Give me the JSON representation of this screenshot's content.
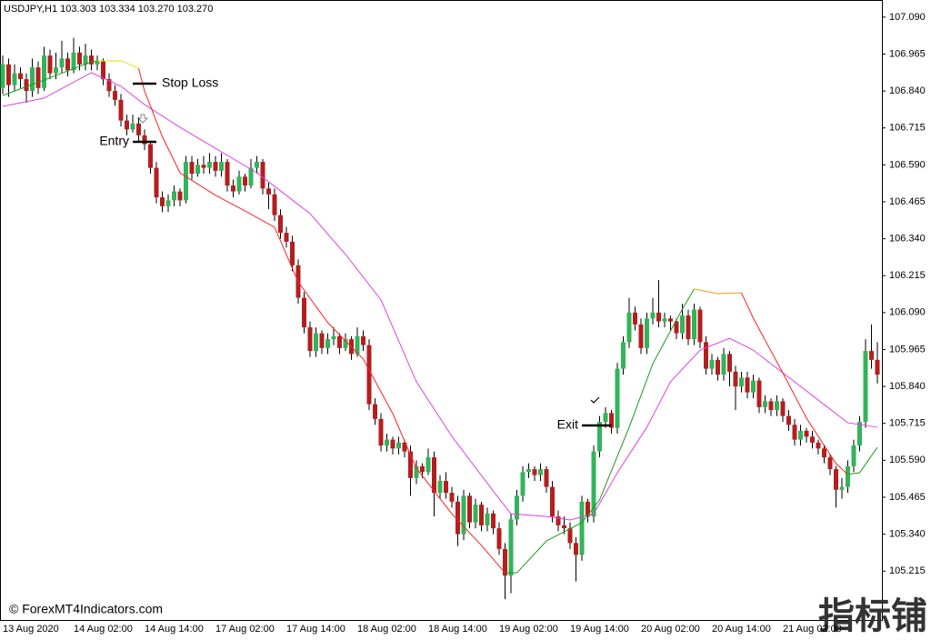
{
  "chart_data": {
    "type": "candlestick",
    "title": "USDJPY,H1  103.303 103.334 103.270 103.270",
    "copyright": "© ForexMT4Indicators.com",
    "watermark": "指标铺",
    "up_color": "#32b45a",
    "down_color": "#b41e1e",
    "wick_color": "#000000",
    "ylim": [
      105.0495,
      107.148
    ],
    "yticks": [
      {
        "value": 107.09,
        "label": "107.090"
      },
      106.965,
      {
        "value": 106.84,
        "label": "106.840"
      },
      106.715,
      {
        "value": 106.59,
        "label": "106.590"
      },
      106.465,
      {
        "value": 106.34,
        "label": "106.340"
      },
      106.215,
      {
        "value": 106.09,
        "label": "106.090"
      },
      105.965,
      {
        "value": 105.84,
        "label": "105.840"
      },
      105.715,
      {
        "value": 105.59,
        "label": "105.590"
      },
      105.465,
      {
        "value": 105.34,
        "label": "105.340"
      },
      105.215
    ],
    "categories": [
      "13 Aug 2020",
      null,
      null,
      null,
      null,
      null,
      null,
      null,
      null,
      null,
      null,
      null,
      "14 Aug 02:00",
      null,
      null,
      null,
      null,
      null,
      null,
      null,
      null,
      null,
      null,
      null,
      "14 Aug 14:00",
      null,
      null,
      null,
      null,
      null,
      null,
      null,
      null,
      null,
      null,
      null,
      "17 Aug 02:00",
      null,
      null,
      null,
      null,
      null,
      null,
      null,
      null,
      null,
      null,
      null,
      "17 Aug 14:00",
      null,
      null,
      null,
      null,
      null,
      null,
      null,
      null,
      null,
      null,
      null,
      "18 Aug 02:00",
      null,
      null,
      null,
      null,
      null,
      null,
      null,
      null,
      null,
      null,
      null,
      "18 Aug 14:00",
      null,
      null,
      null,
      null,
      null,
      null,
      null,
      null,
      null,
      null,
      null,
      "19 Aug 02:00",
      null,
      null,
      null,
      null,
      null,
      null,
      null,
      null,
      null,
      null,
      null,
      "19 Aug 14:00",
      null,
      null,
      null,
      null,
      null,
      null,
      null,
      null,
      null,
      null,
      null,
      "20 Aug 02:00",
      null,
      null,
      null,
      null,
      null,
      null,
      null,
      null,
      null,
      null,
      null,
      "20 Aug 14:00",
      null,
      null,
      null,
      null,
      null,
      null,
      null,
      null,
      null,
      null,
      null,
      "21 Aug 02:00",
      null,
      null,
      null,
      null,
      null,
      null,
      null,
      null,
      null,
      null,
      null,
      null,
      null,
      null,
      null,
      null
    ],
    "ohlc": [
      [
        106.85,
        106.96,
        106.83,
        106.93
      ],
      [
        106.93,
        106.95,
        106.82,
        106.86
      ],
      [
        106.86,
        106.93,
        106.84,
        106.9
      ],
      [
        106.9,
        106.92,
        106.85,
        106.88
      ],
      [
        106.88,
        106.9,
        106.8,
        106.84
      ],
      [
        106.84,
        106.95,
        106.82,
        106.92
      ],
      [
        106.92,
        106.94,
        106.83,
        106.85
      ],
      [
        106.85,
        106.99,
        106.84,
        106.96
      ],
      [
        106.96,
        106.98,
        106.88,
        106.9
      ],
      [
        106.9,
        106.97,
        106.88,
        106.92
      ],
      [
        106.92,
        107.01,
        106.9,
        106.95
      ],
      [
        106.95,
        106.97,
        106.89,
        106.91
      ],
      [
        106.91,
        107.02,
        106.9,
        106.97
      ],
      [
        106.97,
        106.99,
        106.91,
        106.93
      ],
      [
        106.93,
        107.0,
        106.91,
        106.96
      ],
      [
        106.96,
        106.98,
        106.91,
        106.93
      ],
      [
        106.93,
        106.96,
        106.91,
        106.94
      ],
      [
        106.94,
        106.95,
        106.86,
        106.88
      ],
      [
        106.88,
        106.9,
        106.82,
        106.84
      ],
      [
        106.84,
        106.86,
        106.79,
        106.81
      ],
      [
        106.81,
        106.83,
        106.72,
        106.74
      ],
      [
        106.74,
        106.76,
        106.69,
        106.71
      ],
      [
        106.71,
        106.76,
        106.7,
        106.73
      ],
      [
        106.73,
        106.75,
        106.67,
        106.69
      ],
      [
        106.69,
        106.71,
        106.64,
        106.66
      ],
      [
        106.66,
        106.67,
        106.56,
        106.58
      ],
      [
        106.58,
        106.6,
        106.46,
        106.48
      ],
      [
        106.48,
        106.5,
        106.43,
        106.45
      ],
      [
        106.45,
        106.49,
        106.43,
        106.47
      ],
      [
        106.47,
        106.52,
        106.45,
        106.5
      ],
      [
        106.5,
        106.51,
        106.45,
        106.47
      ],
      [
        106.47,
        106.62,
        106.46,
        106.6
      ],
      [
        106.6,
        106.62,
        106.54,
        106.56
      ],
      [
        106.56,
        106.61,
        106.55,
        106.59
      ],
      [
        106.59,
        106.62,
        106.56,
        106.58
      ],
      [
        106.58,
        106.63,
        106.56,
        106.6
      ],
      [
        106.6,
        106.62,
        106.55,
        106.57
      ],
      [
        106.57,
        106.63,
        106.55,
        106.6
      ],
      [
        106.6,
        106.61,
        106.5,
        106.52
      ],
      [
        106.52,
        106.54,
        106.48,
        106.5
      ],
      [
        106.5,
        106.57,
        106.49,
        106.55
      ],
      [
        106.55,
        106.56,
        106.5,
        106.52
      ],
      [
        106.52,
        106.61,
        106.51,
        106.58
      ],
      [
        106.58,
        106.62,
        106.56,
        106.6
      ],
      [
        106.6,
        106.61,
        106.49,
        106.51
      ],
      [
        106.51,
        106.53,
        106.44,
        106.49
      ],
      [
        106.49,
        106.51,
        106.4,
        106.42
      ],
      [
        106.42,
        106.44,
        106.34,
        106.36
      ],
      [
        106.36,
        106.38,
        106.31,
        106.33
      ],
      [
        106.33,
        106.35,
        106.23,
        106.25
      ],
      [
        106.25,
        106.27,
        106.12,
        106.14
      ],
      [
        106.14,
        106.16,
        106.02,
        106.04
      ],
      [
        106.04,
        106.06,
        105.94,
        105.96
      ],
      [
        105.96,
        106.04,
        105.94,
        106.02
      ],
      [
        106.02,
        106.03,
        105.95,
        105.97
      ],
      [
        105.97,
        106.02,
        105.95,
        106.0
      ],
      [
        106.0,
        106.04,
        105.98,
        106.01
      ],
      [
        106.01,
        106.02,
        105.95,
        105.97
      ],
      [
        105.97,
        106.02,
        105.96,
        106.0
      ],
      [
        106.0,
        106.01,
        105.93,
        105.95
      ],
      [
        105.95,
        106.04,
        105.94,
        106.01
      ],
      [
        106.01,
        106.03,
        105.96,
        105.98
      ],
      [
        105.98,
        106.0,
        105.76,
        105.78
      ],
      [
        105.78,
        105.8,
        105.71,
        105.73
      ],
      [
        105.73,
        105.75,
        105.62,
        105.64
      ],
      [
        105.64,
        105.68,
        105.62,
        105.66
      ],
      [
        105.66,
        105.67,
        105.61,
        105.63
      ],
      [
        105.63,
        105.67,
        105.61,
        105.65
      ],
      [
        105.65,
        105.66,
        105.6,
        105.62
      ],
      [
        105.62,
        105.64,
        105.47,
        105.53
      ],
      [
        105.53,
        105.59,
        105.51,
        105.57
      ],
      [
        105.57,
        105.58,
        105.53,
        105.55
      ],
      [
        105.55,
        105.63,
        105.54,
        105.6
      ],
      [
        105.6,
        105.62,
        105.4,
        105.48
      ],
      [
        105.48,
        105.54,
        105.46,
        105.52
      ],
      [
        105.52,
        105.55,
        105.46,
        105.48
      ],
      [
        105.48,
        105.5,
        105.43,
        105.45
      ],
      [
        105.45,
        105.47,
        105.3,
        105.34
      ],
      [
        105.34,
        105.49,
        105.32,
        105.47
      ],
      [
        105.47,
        105.48,
        105.36,
        105.38
      ],
      [
        105.38,
        105.46,
        105.36,
        105.44
      ],
      [
        105.44,
        105.45,
        105.35,
        105.37
      ],
      [
        105.37,
        105.43,
        105.35,
        105.41
      ],
      [
        105.41,
        105.42,
        105.34,
        105.36
      ],
      [
        105.36,
        105.38,
        105.27,
        105.29
      ],
      [
        105.29,
        105.31,
        105.12,
        105.2
      ],
      [
        105.2,
        105.41,
        105.14,
        105.39
      ],
      [
        105.39,
        105.49,
        105.37,
        105.47
      ],
      [
        105.47,
        105.57,
        105.45,
        105.55
      ],
      [
        105.55,
        105.58,
        105.53,
        105.56
      ],
      [
        105.56,
        105.57,
        105.52,
        105.54
      ],
      [
        105.54,
        105.58,
        105.52,
        105.56
      ],
      [
        105.56,
        105.57,
        105.48,
        105.5
      ],
      [
        105.5,
        105.52,
        105.38,
        105.4
      ],
      [
        105.4,
        105.42,
        105.35,
        105.37
      ],
      [
        105.37,
        105.4,
        105.34,
        105.36
      ],
      [
        105.36,
        105.38,
        105.29,
        105.31
      ],
      [
        105.31,
        105.33,
        105.18,
        105.27
      ],
      [
        105.27,
        105.47,
        105.25,
        105.45
      ],
      [
        105.45,
        105.46,
        105.38,
        105.4
      ],
      [
        105.4,
        105.64,
        105.38,
        105.62
      ],
      [
        105.62,
        105.74,
        105.6,
        105.72
      ],
      [
        105.72,
        105.77,
        105.7,
        105.75
      ],
      [
        105.75,
        105.76,
        105.68,
        105.7
      ],
      [
        105.7,
        105.92,
        105.68,
        105.9
      ],
      [
        105.9,
        106.01,
        105.88,
        105.99
      ],
      [
        105.99,
        106.14,
        105.97,
        106.09
      ],
      [
        106.09,
        106.11,
        106.03,
        106.05
      ],
      [
        106.05,
        106.07,
        105.95,
        105.97
      ],
      [
        105.97,
        106.09,
        105.95,
        106.07
      ],
      [
        106.07,
        106.14,
        106.05,
        106.09
      ],
      [
        106.09,
        106.2,
        106.04,
        106.06
      ],
      [
        106.06,
        106.09,
        106.04,
        106.07
      ],
      [
        106.07,
        106.08,
        106.03,
        106.06
      ],
      [
        106.06,
        106.07,
        106.0,
        106.02
      ],
      [
        106.02,
        106.12,
        106.0,
        106.08
      ],
      [
        106.08,
        106.1,
        105.98,
        106.0
      ],
      [
        106.0,
        106.12,
        105.98,
        106.1
      ],
      [
        106.1,
        106.11,
        105.97,
        105.99
      ],
      [
        105.99,
        106.01,
        105.88,
        105.9
      ],
      [
        105.9,
        105.95,
        105.88,
        105.93
      ],
      [
        105.93,
        105.94,
        105.86,
        105.88
      ],
      [
        105.88,
        105.97,
        105.86,
        105.95
      ],
      [
        105.95,
        105.96,
        105.84,
        105.89
      ],
      [
        105.89,
        105.91,
        105.76,
        105.84
      ],
      [
        105.84,
        105.89,
        105.82,
        105.87
      ],
      [
        105.87,
        105.89,
        105.8,
        105.82
      ],
      [
        105.82,
        105.88,
        105.8,
        105.86
      ],
      [
        105.86,
        105.87,
        105.75,
        105.77
      ],
      [
        105.77,
        105.81,
        105.75,
        105.79
      ],
      [
        105.79,
        105.8,
        105.74,
        105.76
      ],
      [
        105.76,
        105.81,
        105.74,
        105.79
      ],
      [
        105.79,
        105.8,
        105.72,
        105.74
      ],
      [
        105.74,
        105.76,
        105.69,
        105.71
      ],
      [
        105.71,
        105.73,
        105.64,
        105.66
      ],
      [
        105.66,
        105.71,
        105.64,
        105.69
      ],
      [
        105.69,
        105.7,
        105.65,
        105.67
      ],
      [
        105.67,
        105.69,
        105.63,
        105.65
      ],
      [
        105.65,
        105.66,
        105.61,
        105.63
      ],
      [
        105.63,
        105.64,
        105.58,
        105.6
      ],
      [
        105.6,
        105.61,
        105.54,
        105.56
      ],
      [
        105.56,
        105.57,
        105.43,
        105.49
      ],
      [
        105.49,
        105.53,
        105.46,
        105.5
      ],
      [
        105.5,
        105.59,
        105.48,
        105.57
      ],
      [
        105.57,
        105.66,
        105.55,
        105.64
      ],
      [
        105.64,
        105.74,
        105.62,
        105.72
      ],
      [
        105.72,
        106.0,
        105.7,
        105.96
      ],
      [
        105.96,
        106.05,
        105.9,
        105.93
      ],
      [
        105.93,
        105.99,
        105.85,
        105.88
      ]
    ],
    "lines": [
      {
        "color": "#e040e0",
        "x": [
          0,
          7,
          15,
          20,
          24,
          30,
          36,
          43,
          47,
          52,
          58,
          64,
          70,
          76,
          83,
          86,
          92,
          96,
          100,
          104,
          109,
          113,
          118,
          123,
          127,
          132,
          138,
          143,
          148
        ],
        "values": [
          106.788,
          106.816,
          106.902,
          106.856,
          106.794,
          106.717,
          106.646,
          106.563,
          106.502,
          106.425,
          106.287,
          106.133,
          105.856,
          105.671,
          105.486,
          105.409,
          105.4,
          105.388,
          105.409,
          105.548,
          105.702,
          105.856,
          105.963,
          106.003,
          105.963,
          105.886,
          105.794,
          105.717,
          105.702
        ]
      },
      {
        "color": "#1a9a1a",
        "x": [
          0,
          7,
          15,
          16
        ],
        "values": [
          106.825,
          106.877,
          106.939,
          106.942
        ]
      },
      {
        "color": "#e8e000",
        "x": [
          16,
          20,
          23
        ],
        "values": [
          106.942,
          106.942,
          106.917
        ]
      },
      {
        "color": "#ff2020",
        "x": [
          23,
          24,
          27,
          30,
          36,
          41,
          46,
          50,
          55,
          61,
          66,
          70,
          76,
          81,
          85
        ],
        "values": [
          106.917,
          106.84,
          106.686,
          106.563,
          106.487,
          106.434,
          106.379,
          106.194,
          106.056,
          105.933,
          105.748,
          105.563,
          105.409,
          105.302,
          105.209
        ]
      },
      {
        "color": "#1a9a1a",
        "x": [
          85,
          87,
          92,
          98,
          101,
          106,
          110,
          115,
          117
        ],
        "values": [
          105.209,
          105.209,
          105.317,
          105.379,
          105.456,
          105.702,
          105.917,
          106.102,
          106.17
        ]
      },
      {
        "color": "#f0a000",
        "x": [
          117,
          121,
          125
        ],
        "values": [
          106.17,
          106.154,
          106.157
        ]
      },
      {
        "color": "#ff2020",
        "x": [
          125,
          127,
          132,
          136,
          141,
          143
        ],
        "values": [
          106.157,
          106.071,
          105.886,
          105.733,
          105.579,
          105.542
        ]
      },
      {
        "color": "#1a9a1a",
        "x": [
          143,
          145,
          148
        ],
        "values": [
          105.542,
          105.548,
          105.634
        ]
      }
    ],
    "annotations": [
      {
        "text": "Stop Loss",
        "value": 106.865,
        "x": [
          22,
          26
        ],
        "label_side": "right"
      },
      {
        "text": "Entry",
        "value": 106.668,
        "x": [
          22,
          26
        ],
        "label_side": "left"
      },
      {
        "text": "Exit",
        "value": 105.708,
        "x": [
          98,
          103
        ],
        "label_side": "left"
      }
    ]
  }
}
